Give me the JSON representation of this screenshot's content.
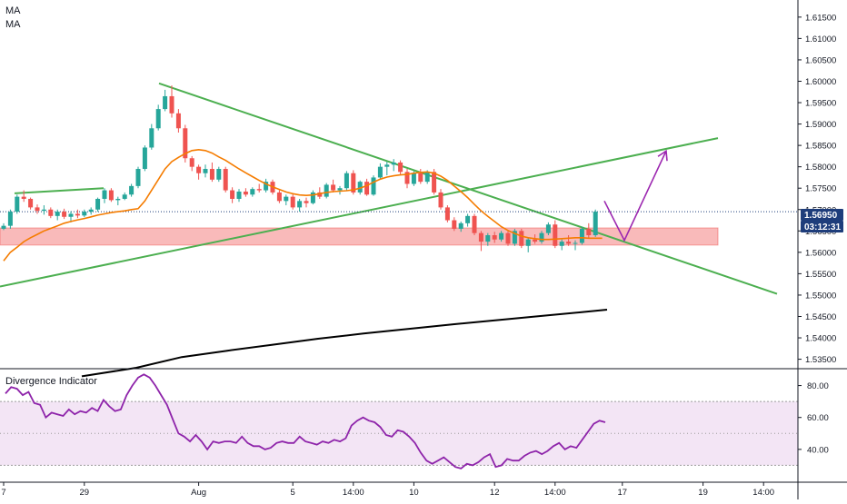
{
  "legend": [
    "MA",
    "MA"
  ],
  "indicator_title": "Divergence Indicator",
  "price_tag": "1.56950",
  "countdown_tag": "03:12:31",
  "colors": {
    "up": "#26a69a",
    "down": "#ef5350",
    "ma_short": "#f57c00",
    "ma_long": "#000000",
    "trendline": "#4caf50",
    "projection": "#9c27b0",
    "zone": "#f8a9a9",
    "osc_line": "#8e24aa",
    "osc_band": "#f3e5f5",
    "tag": "#1e3d7b"
  },
  "chart_data": [
    {
      "type": "candlestick",
      "title": "",
      "ylim": [
        1.533,
        1.619
      ],
      "price_ticks": [
        "1.53500",
        "1.54000",
        "1.54500",
        "1.55000",
        "1.55500",
        "1.56000",
        "1.56500",
        "1.57000",
        "1.57500",
        "1.58000",
        "1.58500",
        "1.59000",
        "1.59500",
        "1.60000",
        "1.60500",
        "1.61000",
        "1.61500"
      ],
      "time_ticks": [
        "7",
        "29",
        "Aug",
        "5",
        "14:00",
        "10",
        "12",
        "14:00",
        "17",
        "19",
        "14:00"
      ],
      "last_price": 1.5695,
      "candles": [
        [
          1.5655,
          1.5668,
          1.5652,
          1.5662
        ],
        [
          1.5662,
          1.57,
          1.5655,
          1.5695
        ],
        [
          1.5695,
          1.5735,
          1.569,
          1.573
        ],
        [
          1.573,
          1.5745,
          1.5718,
          1.5725
        ],
        [
          1.5725,
          1.5728,
          1.57,
          1.5705
        ],
        [
          1.5705,
          1.5712,
          1.569,
          1.5697
        ],
        [
          1.5697,
          1.571,
          1.5688,
          1.57
        ],
        [
          1.57,
          1.5705,
          1.568,
          1.5685
        ],
        [
          1.5685,
          1.57,
          1.5675,
          1.5695
        ],
        [
          1.5695,
          1.5702,
          1.5678,
          1.5683
        ],
        [
          1.5683,
          1.5696,
          1.567,
          1.569
        ],
        [
          1.569,
          1.57,
          1.568,
          1.5686
        ],
        [
          1.5686,
          1.57,
          1.5682,
          1.5695
        ],
        [
          1.5695,
          1.5705,
          1.5688,
          1.57
        ],
        [
          1.57,
          1.5728,
          1.5695,
          1.5725
        ],
        [
          1.5725,
          1.575,
          1.5715,
          1.5745
        ],
        [
          1.5745,
          1.575,
          1.5718,
          1.5722
        ],
        [
          1.5722,
          1.573,
          1.571,
          1.5725
        ],
        [
          1.5725,
          1.574,
          1.5722,
          1.5735
        ],
        [
          1.5735,
          1.576,
          1.573,
          1.5755
        ],
        [
          1.5755,
          1.58,
          1.575,
          1.5795
        ],
        [
          1.5795,
          1.585,
          1.579,
          1.5845
        ],
        [
          1.5845,
          1.59,
          1.584,
          1.589
        ],
        [
          1.589,
          1.5945,
          1.5885,
          1.5935
        ],
        [
          1.5935,
          1.598,
          1.593,
          1.5965
        ],
        [
          1.5965,
          1.599,
          1.5915,
          1.5925
        ],
        [
          1.5925,
          1.5935,
          1.588,
          1.589
        ],
        [
          1.589,
          1.5898,
          1.581,
          1.582
        ],
        [
          1.582,
          1.5825,
          1.579,
          1.58
        ],
        [
          1.58,
          1.5805,
          1.577,
          1.5785
        ],
        [
          1.5785,
          1.5805,
          1.5775,
          1.5795
        ],
        [
          1.5795,
          1.581,
          1.5765,
          1.577
        ],
        [
          1.577,
          1.58,
          1.5765,
          1.5795
        ],
        [
          1.5795,
          1.58,
          1.574,
          1.5745
        ],
        [
          1.5745,
          1.5752,
          1.5715,
          1.5725
        ],
        [
          1.5725,
          1.5748,
          1.5718,
          1.5742
        ],
        [
          1.5742,
          1.575,
          1.573,
          1.5735
        ],
        [
          1.5735,
          1.5752,
          1.573,
          1.5748
        ],
        [
          1.5748,
          1.576,
          1.574,
          1.5745
        ],
        [
          1.5745,
          1.5772,
          1.574,
          1.5765
        ],
        [
          1.5765,
          1.577,
          1.5735,
          1.574
        ],
        [
          1.574,
          1.5745,
          1.5715,
          1.572
        ],
        [
          1.572,
          1.5735,
          1.571,
          1.573
        ],
        [
          1.573,
          1.5738,
          1.57,
          1.5705
        ],
        [
          1.5705,
          1.5725,
          1.5695,
          1.572
        ],
        [
          1.572,
          1.5728,
          1.5705,
          1.5715
        ],
        [
          1.5715,
          1.5745,
          1.5712,
          1.574
        ],
        [
          1.574,
          1.5752,
          1.5725,
          1.573
        ],
        [
          1.573,
          1.5762,
          1.5726,
          1.5758
        ],
        [
          1.5758,
          1.577,
          1.574,
          1.5745
        ],
        [
          1.5745,
          1.5755,
          1.5735,
          1.575
        ],
        [
          1.575,
          1.579,
          1.5745,
          1.5785
        ],
        [
          1.5785,
          1.5792,
          1.5735,
          1.574
        ],
        [
          1.574,
          1.5768,
          1.5735,
          1.5765
        ],
        [
          1.5765,
          1.5772,
          1.5732,
          1.5735
        ],
        [
          1.5735,
          1.578,
          1.5732,
          1.5775
        ],
        [
          1.5775,
          1.5808,
          1.577,
          1.58
        ],
        [
          1.58,
          1.5812,
          1.578,
          1.5805
        ],
        [
          1.5805,
          1.5818,
          1.579,
          1.581
        ],
        [
          1.581,
          1.5815,
          1.578,
          1.5788
        ],
        [
          1.5788,
          1.5795,
          1.575,
          1.576
        ],
        [
          1.576,
          1.579,
          1.5755,
          1.5785
        ],
        [
          1.5785,
          1.5795,
          1.576,
          1.5765
        ],
        [
          1.5765,
          1.5792,
          1.576,
          1.5788
        ],
        [
          1.5788,
          1.5795,
          1.5735,
          1.574
        ],
        [
          1.574,
          1.5748,
          1.57,
          1.5705
        ],
        [
          1.5705,
          1.571,
          1.567,
          1.5675
        ],
        [
          1.5675,
          1.5682,
          1.565,
          1.5655
        ],
        [
          1.5655,
          1.5672,
          1.5648,
          1.5668
        ],
        [
          1.5668,
          1.569,
          1.566,
          1.5685
        ],
        [
          1.5685,
          1.569,
          1.564,
          1.5645
        ],
        [
          1.5645,
          1.565,
          1.5603,
          1.5625
        ],
        [
          1.5625,
          1.5645,
          1.5615,
          1.564
        ],
        [
          1.564,
          1.5648,
          1.5622,
          1.563
        ],
        [
          1.563,
          1.565,
          1.5625,
          1.5645
        ],
        [
          1.5645,
          1.565,
          1.5615,
          1.562
        ],
        [
          1.562,
          1.5655,
          1.5615,
          1.565
        ],
        [
          1.565,
          1.5655,
          1.561,
          1.5615
        ],
        [
          1.5615,
          1.5635,
          1.56,
          1.563
        ],
        [
          1.563,
          1.5642,
          1.562,
          1.5625
        ],
        [
          1.5625,
          1.565,
          1.562,
          1.5645
        ],
        [
          1.5645,
          1.567,
          1.564,
          1.5665
        ],
        [
          1.5665,
          1.5675,
          1.561,
          1.5615
        ],
        [
          1.5615,
          1.563,
          1.5605,
          1.5625
        ],
        [
          1.5625,
          1.564,
          1.5615,
          1.562
        ],
        [
          1.562,
          1.5628,
          1.5605,
          1.5622
        ],
        [
          1.5622,
          1.566,
          1.5618,
          1.5655
        ],
        [
          1.5655,
          1.5668,
          1.5632,
          1.564
        ],
        [
          1.564,
          1.57,
          1.5636,
          1.5695
        ]
      ],
      "ma_short": [
        1.558,
        1.56,
        1.5612,
        1.5625,
        1.5634,
        1.5642,
        1.565,
        1.5656,
        1.5662,
        1.5668,
        1.5672,
        1.5676,
        1.5679,
        1.5683,
        1.5687,
        1.569,
        1.5693,
        1.5695,
        1.5697,
        1.57,
        1.5702,
        1.572,
        1.5745,
        1.577,
        1.5795,
        1.5812,
        1.5822,
        1.5831,
        1.5838,
        1.584,
        1.5838,
        1.5832,
        1.5823,
        1.5815,
        1.5805,
        1.5795,
        1.5786,
        1.5777,
        1.5768,
        1.576,
        1.5753,
        1.5747,
        1.5741,
        1.5737,
        1.5734,
        1.5733,
        1.5734,
        1.5737,
        1.574,
        1.5742,
        1.5743,
        1.5744,
        1.5746,
        1.575,
        1.5756,
        1.5764,
        1.5771,
        1.5776,
        1.5779,
        1.5781,
        1.5782,
        1.5785,
        1.5787,
        1.5788,
        1.5785,
        1.5778,
        1.5768,
        1.5755,
        1.5742,
        1.5728,
        1.5712,
        1.5697,
        1.5684,
        1.5672,
        1.566,
        1.5651,
        1.5644,
        1.5638,
        1.5634,
        1.5632,
        1.563,
        1.563,
        1.5631,
        1.5632,
        1.5633,
        1.5634,
        1.5634,
        1.5633,
        1.5633,
        1.5633
      ],
      "ma_long": [
        [
          90,
          1.531
        ],
        [
          150,
          1.533
        ],
        [
          200,
          1.5355
        ],
        [
          250,
          1.537
        ],
        [
          300,
          1.5384
        ],
        [
          350,
          1.5398
        ],
        [
          400,
          1.541
        ],
        [
          450,
          1.5421
        ],
        [
          500,
          1.5432
        ],
        [
          550,
          1.5442
        ],
        [
          600,
          1.5452
        ],
        [
          640,
          1.546
        ],
        [
          668,
          1.5466
        ]
      ],
      "support_zone": [
        1.5617,
        1.5657
      ],
      "trendlines": [
        [
          [
            175,
            1.5995
          ],
          [
            855,
            1.5503
          ]
        ],
        [
          [
            0,
            1.552
          ],
          [
            790,
            1.5867
          ]
        ],
        [
          [
            16,
            1.5738
          ],
          [
            114,
            1.575
          ]
        ]
      ],
      "projection": [
        [
          665,
          1.572
        ],
        [
          687,
          1.5628
        ],
        [
          733,
          1.5837
        ]
      ]
    },
    {
      "type": "line",
      "title": "Divergence Indicator",
      "ylim": [
        20,
        90
      ],
      "y_ticks": [
        "40.00",
        "60.00",
        "80.00"
      ],
      "band": [
        30,
        70
      ],
      "midline": 50,
      "values": [
        75,
        79,
        78,
        74,
        76,
        69,
        68,
        60,
        63,
        62,
        61,
        65,
        62,
        64,
        63,
        66,
        64,
        71,
        67,
        64,
        65,
        74,
        80,
        85,
        87,
        85,
        80,
        74,
        68,
        59,
        50,
        48,
        45,
        49,
        45,
        40,
        45,
        44,
        45,
        45,
        44,
        48,
        44,
        42,
        42,
        40,
        41,
        44,
        45,
        44,
        44,
        48,
        45,
        44,
        43,
        45,
        44,
        46,
        45,
        47,
        55,
        58,
        60,
        58,
        57,
        54,
        49,
        48,
        52,
        51,
        48,
        44,
        38,
        33,
        31,
        33,
        35,
        32,
        29,
        28,
        31,
        30,
        32,
        35,
        37,
        29,
        30,
        34,
        33,
        33,
        36,
        38,
        39,
        37,
        39,
        42,
        44,
        40,
        42,
        41,
        46,
        51,
        56,
        58,
        57
      ]
    }
  ]
}
